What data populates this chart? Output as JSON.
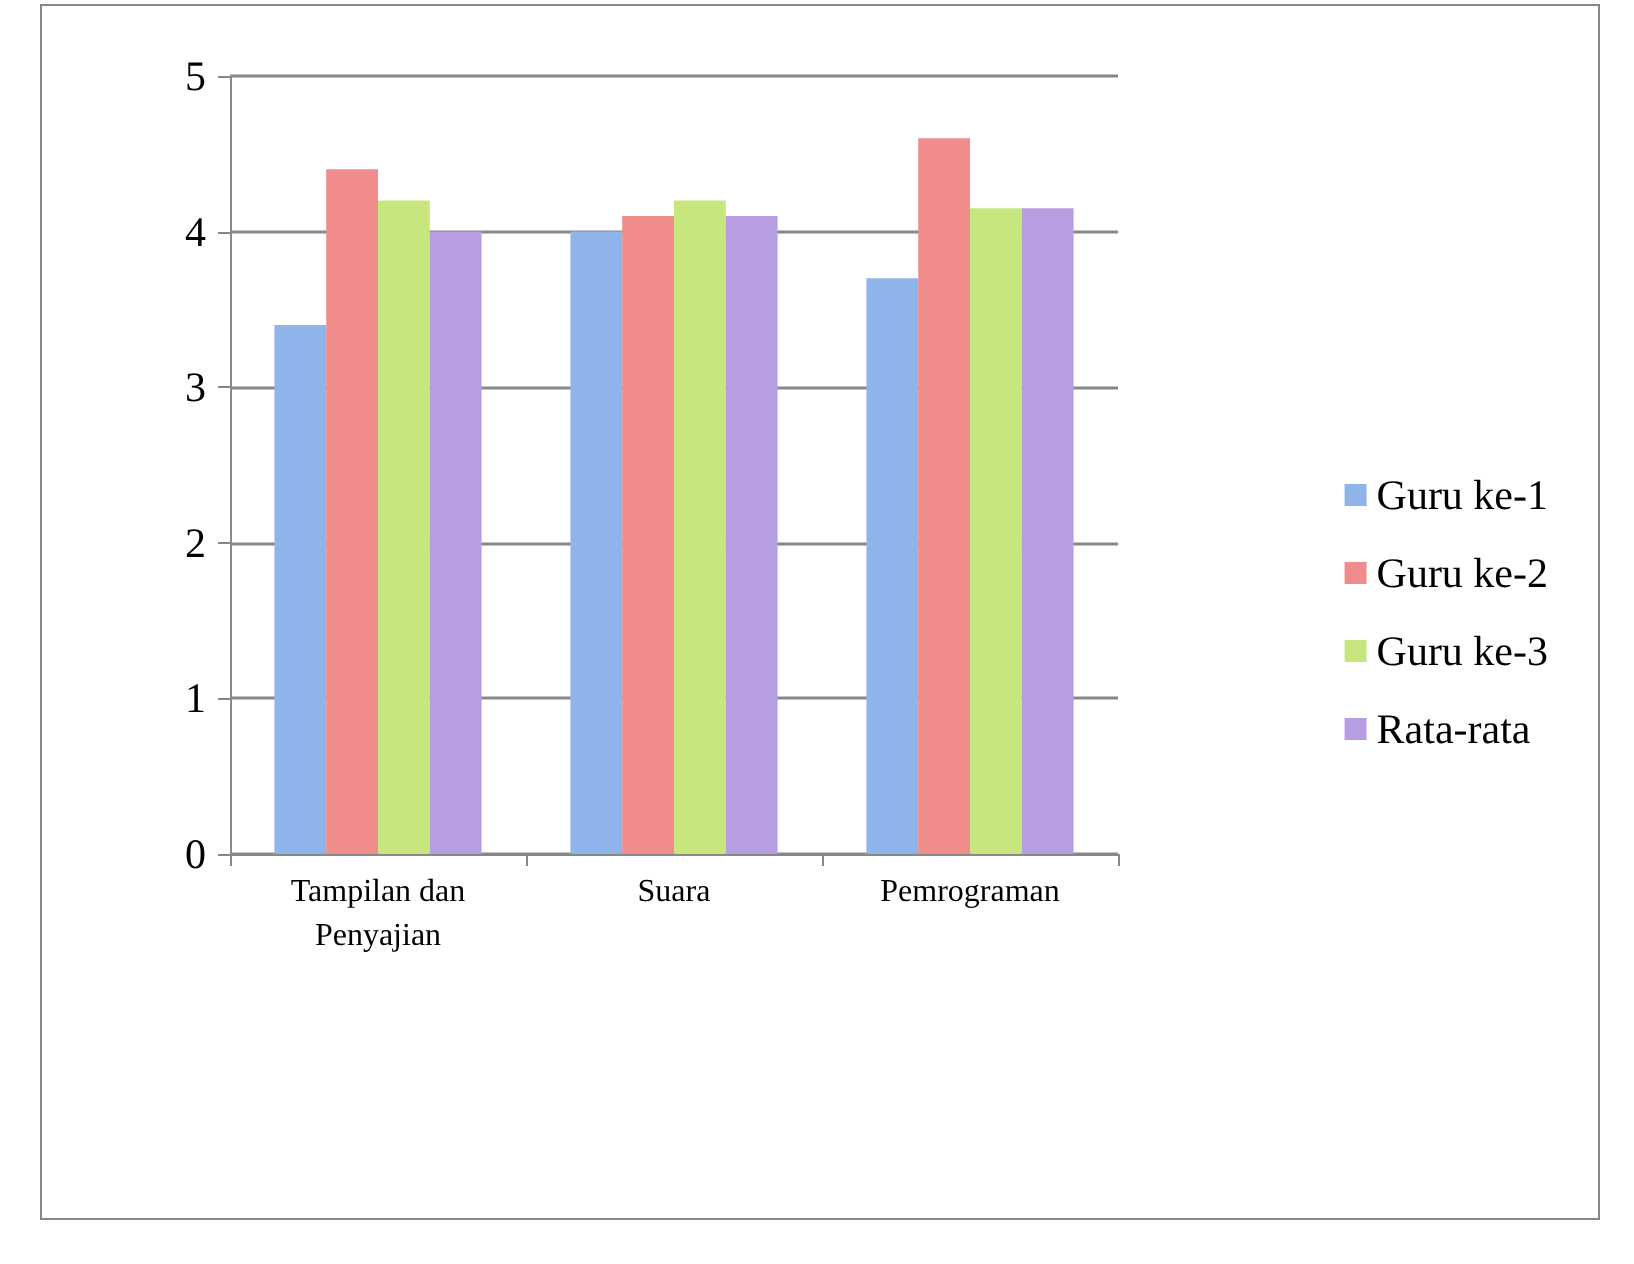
{
  "chart_data": {
    "type": "bar",
    "categories": [
      "Tampilan dan\nPenyajian",
      "Suara",
      "Pemrograman"
    ],
    "series": [
      {
        "name": "Guru ke-1",
        "color": "#8fb4ea",
        "values": [
          3.4,
          4.0,
          3.7
        ]
      },
      {
        "name": "Guru ke-2",
        "color": "#f08c8c",
        "values": [
          4.4,
          4.1,
          4.6
        ]
      },
      {
        "name": "Guru ke-3",
        "color": "#c8e67e",
        "values": [
          4.2,
          4.2,
          4.15
        ]
      },
      {
        "name": "Rata-rata",
        "color": "#b79ee2",
        "values": [
          4.0,
          4.1,
          4.15
        ]
      }
    ],
    "ylim": [
      0,
      5
    ],
    "yticks": [
      0,
      1,
      2,
      3,
      4,
      5
    ],
    "grid": "y",
    "legend": "right"
  }
}
